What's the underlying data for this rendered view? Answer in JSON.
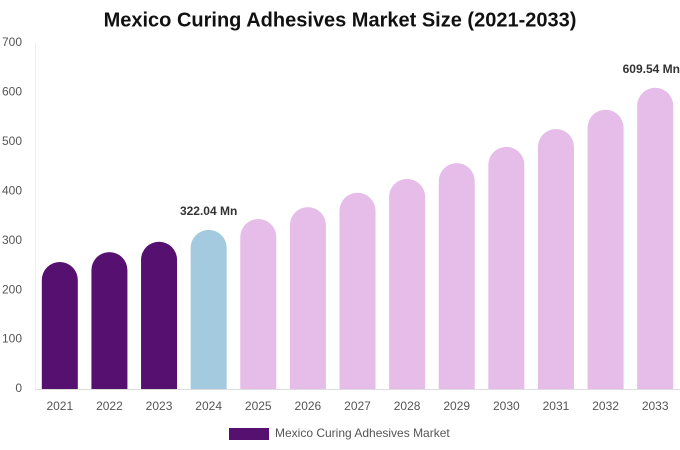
{
  "chart_data": {
    "type": "bar",
    "title": "Mexico Curing Adhesives Market Size (2021-2033)",
    "categories": [
      "2021",
      "2022",
      "2023",
      "2024",
      "2025",
      "2026",
      "2027",
      "2028",
      "2029",
      "2030",
      "2031",
      "2032",
      "2033"
    ],
    "series": [
      {
        "name": "Mexico Curing Adhesives Market",
        "color": "#561170",
        "colors": [
          "#561170",
          "#561170",
          "#561170",
          "#a3cadf",
          "#e6bce8",
          "#e6bce8",
          "#e6bce8",
          "#e6bce8",
          "#e6bce8",
          "#e6bce8",
          "#e6bce8",
          "#e6bce8",
          "#e6bce8"
        ],
        "values": [
          257,
          277,
          298,
          322.04,
          344,
          368,
          397,
          425,
          457,
          490,
          526,
          565,
          609.54
        ],
        "value_labels": [
          null,
          null,
          null,
          "322.04 Mn",
          null,
          null,
          null,
          null,
          null,
          null,
          null,
          null,
          "609.54 Mn"
        ]
      }
    ],
    "ylim": [
      0,
      700
    ],
    "yticks": [
      0,
      100,
      200,
      300,
      400,
      500,
      600,
      700
    ],
    "grid": false
  }
}
